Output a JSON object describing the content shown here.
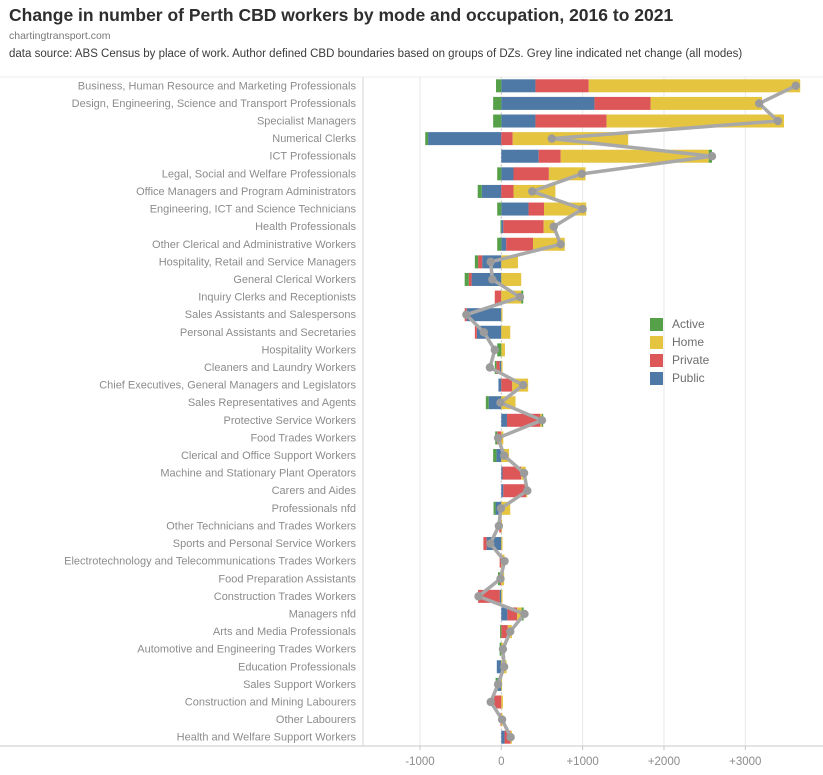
{
  "header": {
    "title": "Change in number of Perth CBD workers by mode and occupation, 2016 to 2021",
    "site": "chartingtransport.com",
    "source": "data source: ABS Census by place of work. Author defined CBD boundaries based on groups of DZs. Grey line indicated net change (all modes)"
  },
  "legend": {
    "items": [
      {
        "label": "Active",
        "color": "#55a049"
      },
      {
        "label": "Home",
        "color": "#e5c43f"
      },
      {
        "label": "Private",
        "color": "#dd5658"
      },
      {
        "label": "Public",
        "color": "#4e79a7"
      }
    ]
  },
  "chart_data": {
    "type": "bar",
    "orientation": "horizontal",
    "stacked": true,
    "title": "Change in number of Perth CBD workers by mode and occupation, 2016 to 2021",
    "xlabel": "",
    "ylabel": "",
    "xlim": [
      -1700,
      3955
    ],
    "grid": true,
    "legend_position": "middle-right",
    "stack_order_from_zero": [
      "Public",
      "Private",
      "Home",
      "Active"
    ],
    "x_ticks": [
      {
        "value": -1000,
        "label": "-1000"
      },
      {
        "value": 0,
        "label": "0"
      },
      {
        "value": 1000,
        "label": "+1000"
      },
      {
        "value": 2000,
        "label": "+2000"
      },
      {
        "value": 3000,
        "label": "+3000"
      }
    ],
    "categories": [
      "Business, Human Resource and Marketing Professionals",
      "Design, Engineering, Science and Transport Professionals",
      "Specialist Managers",
      "Numerical Clerks",
      "ICT Professionals",
      "Legal, Social and Welfare Professionals",
      "Office Managers and Program Administrators",
      "Engineering, ICT and Science Technicians",
      "Health Professionals",
      "Other Clerical and Administrative Workers",
      "Hospitality, Retail and Service Managers",
      "General Clerical Workers",
      "Inquiry Clerks and Receptionists",
      "Sales Assistants and Salespersons",
      "Personal Assistants and Secretaries",
      "Hospitality Workers",
      "Cleaners and Laundry Workers",
      "Chief Executives, General Managers and Legislators",
      "Sales Representatives and Agents",
      "Protective Service Workers",
      "Food Trades Workers",
      "Clerical and Office Support Workers",
      "Machine and Stationary Plant Operators",
      "Carers and Aides",
      "Professionals nfd",
      "Other Technicians and Trades Workers",
      "Sports and Personal Service Workers",
      "Electrotechnology and Telecommunications Trades Workers",
      "Food Preparation Assistants",
      "Construction Trades Workers",
      "Managers nfd",
      "Arts and Media Professionals",
      "Automotive and Engineering Trades Workers",
      "Education Professionals",
      "Sales Support Workers",
      "Construction and Mining Labourers",
      "Other Labourers",
      "Health and Welfare Support Workers"
    ],
    "series": [
      {
        "name": "Active",
        "color": "#55a049",
        "values": [
          -65,
          -100,
          -100,
          -35,
          40,
          -50,
          -50,
          -50,
          -10,
          -50,
          -40,
          -50,
          25,
          0,
          0,
          -50,
          -20,
          0,
          -35,
          15,
          -25,
          -40,
          0,
          0,
          -25,
          0,
          0,
          0,
          -25,
          0,
          25,
          -15,
          -20,
          0,
          -25,
          0,
          0,
          0
        ]
      },
      {
        "name": "Home",
        "color": "#e5c43f",
        "values": [
          2600,
          1370,
          2180,
          1420,
          1820,
          450,
          515,
          520,
          135,
          390,
          205,
          245,
          245,
          15,
          110,
          45,
          15,
          195,
          175,
          20,
          25,
          95,
          55,
          15,
          110,
          10,
          15,
          40,
          35,
          15,
          55,
          50,
          25,
          65,
          10,
          20,
          15,
          15
        ]
      },
      {
        "name": "Private",
        "color": "#dd5658",
        "values": [
          655,
          690,
          875,
          140,
          270,
          435,
          150,
          190,
          495,
          330,
          -50,
          -35,
          -80,
          -25,
          -25,
          0,
          -40,
          135,
          0,
          410,
          -50,
          0,
          230,
          280,
          0,
          -25,
          -40,
          -20,
          -15,
          -265,
          120,
          80,
          0,
          0,
          0,
          -90,
          -10,
          75
        ]
      },
      {
        "name": "Public",
        "color": "#4e79a7",
        "values": [
          420,
          1145,
          420,
          -900,
          460,
          150,
          -240,
          335,
          25,
          60,
          -235,
          -365,
          0,
          -425,
          -300,
          0,
          -20,
          -35,
          -155,
          70,
          0,
          -60,
          15,
          25,
          -70,
          0,
          -180,
          0,
          0,
          -20,
          75,
          0,
          0,
          -55,
          -45,
          0,
          0,
          40
        ]
      }
    ],
    "net_line": {
      "name": "Net change (all modes)",
      "color": "#a8a8a8",
      "values": [
        3620,
        3170,
        3400,
        620,
        2590,
        990,
        380,
        1000,
        645,
        730,
        -130,
        -110,
        230,
        -430,
        -215,
        -80,
        -140,
        270,
        -10,
        500,
        -40,
        35,
        280,
        320,
        -5,
        -30,
        -135,
        40,
        -10,
        -280,
        285,
        110,
        20,
        35,
        -40,
        -130,
        10,
        115
      ]
    }
  }
}
